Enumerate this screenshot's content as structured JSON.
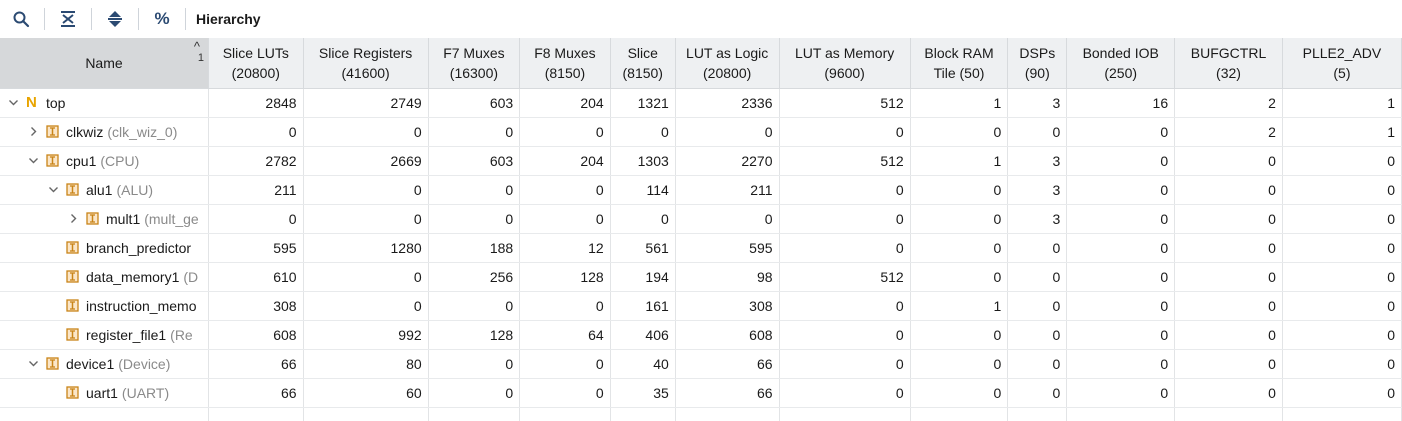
{
  "toolbar": {
    "title": "Hierarchy",
    "buttons": [
      {
        "name": "search-button",
        "icon": "search-icon"
      },
      {
        "name": "collapse-all-button",
        "icon": "collapse-all-icon"
      },
      {
        "name": "expand-all-button",
        "icon": "expand-all-icon"
      },
      {
        "name": "percent-button",
        "icon": "percent-icon",
        "label": "%"
      }
    ]
  },
  "table": {
    "name_header": "Name",
    "sort": {
      "direction": "ascending",
      "order": "1"
    },
    "columns": [
      {
        "label": "Slice LUTs",
        "sub": "(20800)"
      },
      {
        "label": "Slice Registers",
        "sub": "(41600)"
      },
      {
        "label": "F7 Muxes",
        "sub": "(16300)"
      },
      {
        "label": "F8 Muxes",
        "sub": "(8150)"
      },
      {
        "label": "Slice",
        "sub": "(8150)"
      },
      {
        "label": "LUT as Logic",
        "sub": "(20800)"
      },
      {
        "label": "LUT as Memory",
        "sub": "(9600)"
      },
      {
        "label": "Block RAM",
        "sub": "Tile (50)"
      },
      {
        "label": "DSPs",
        "sub": "(90)"
      },
      {
        "label": "Bonded IOB",
        "sub": "(250)"
      },
      {
        "label": "BUFGCTRL",
        "sub": "(32)"
      },
      {
        "label": "PLLE2_ADV",
        "sub": "(5)"
      }
    ],
    "rows": [
      {
        "name": "top",
        "module": "",
        "depth": 0,
        "expander": "expanded",
        "kind": "top",
        "values": [
          "2848",
          "2749",
          "603",
          "204",
          "1321",
          "2336",
          "512",
          "1",
          "3",
          "16",
          "2",
          "1"
        ]
      },
      {
        "name": "clkwiz",
        "module": "(clk_wiz_0)",
        "depth": 1,
        "expander": "collapsed",
        "kind": "inst",
        "values": [
          "0",
          "0",
          "0",
          "0",
          "0",
          "0",
          "0",
          "0",
          "0",
          "0",
          "2",
          "1"
        ]
      },
      {
        "name": "cpu1",
        "module": "(CPU)",
        "depth": 1,
        "expander": "expanded",
        "kind": "inst",
        "values": [
          "2782",
          "2669",
          "603",
          "204",
          "1303",
          "2270",
          "512",
          "1",
          "3",
          "0",
          "0",
          "0"
        ]
      },
      {
        "name": "alu1",
        "module": "(ALU)",
        "depth": 2,
        "expander": "expanded",
        "kind": "inst",
        "values": [
          "211",
          "0",
          "0",
          "0",
          "114",
          "211",
          "0",
          "0",
          "3",
          "0",
          "0",
          "0"
        ]
      },
      {
        "name": "mult1",
        "module": "(mult_ge",
        "depth": 3,
        "expander": "collapsed",
        "kind": "inst",
        "values": [
          "0",
          "0",
          "0",
          "0",
          "0",
          "0",
          "0",
          "0",
          "3",
          "0",
          "0",
          "0"
        ]
      },
      {
        "name": "branch_predictor",
        "module": "",
        "depth": 2,
        "expander": "none",
        "kind": "inst",
        "values": [
          "595",
          "1280",
          "188",
          "12",
          "561",
          "595",
          "0",
          "0",
          "0",
          "0",
          "0",
          "0"
        ]
      },
      {
        "name": "data_memory1",
        "module": "(D",
        "depth": 2,
        "expander": "none",
        "kind": "inst",
        "values": [
          "610",
          "0",
          "256",
          "128",
          "194",
          "98",
          "512",
          "0",
          "0",
          "0",
          "0",
          "0"
        ]
      },
      {
        "name": "instruction_memo",
        "module": "",
        "depth": 2,
        "expander": "none",
        "kind": "inst",
        "values": [
          "308",
          "0",
          "0",
          "0",
          "161",
          "308",
          "0",
          "1",
          "0",
          "0",
          "0",
          "0"
        ]
      },
      {
        "name": "register_file1",
        "module": "(Re",
        "depth": 2,
        "expander": "none",
        "kind": "inst",
        "values": [
          "608",
          "992",
          "128",
          "64",
          "406",
          "608",
          "0",
          "0",
          "0",
          "0",
          "0",
          "0"
        ]
      },
      {
        "name": "device1",
        "module": "(Device)",
        "depth": 1,
        "expander": "expanded",
        "kind": "inst",
        "values": [
          "66",
          "80",
          "0",
          "0",
          "40",
          "66",
          "0",
          "0",
          "0",
          "0",
          "0",
          "0"
        ]
      },
      {
        "name": "uart1",
        "module": "(UART)",
        "depth": 2,
        "expander": "none",
        "kind": "inst",
        "values": [
          "66",
          "60",
          "0",
          "0",
          "35",
          "66",
          "0",
          "0",
          "0",
          "0",
          "0",
          "0"
        ]
      }
    ]
  }
}
